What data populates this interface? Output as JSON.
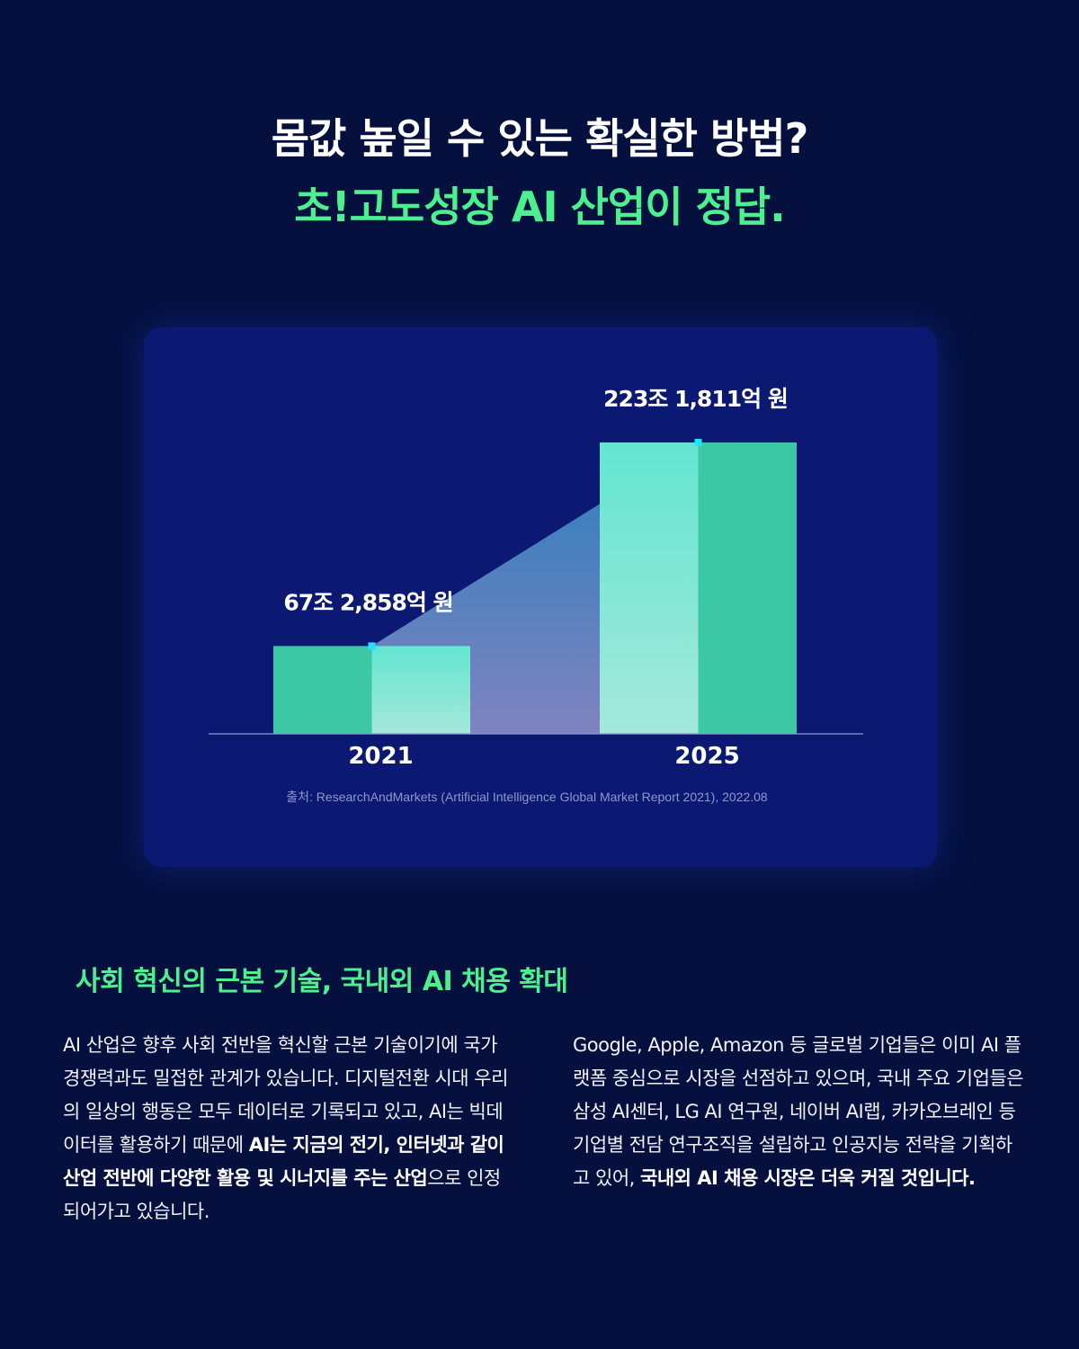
{
  "headline": {
    "line1": "몸값 높일 수 있는 확실한 방법?",
    "line2": "초!고도성장 AI 산업이 정답."
  },
  "chart_data": {
    "type": "bar",
    "categories": [
      "2021",
      "2025"
    ],
    "values": [
      67.2858,
      223.1811
    ],
    "value_labels": [
      "67조 2,858억 원",
      "223조 1,811억 원"
    ],
    "ylabel": "",
    "xlabel": "",
    "grid": false,
    "source": "출처: ResearchAndMarkets (Artificial Intelligence Global Market Report 2021), 2022.08",
    "colors": {
      "bar_dark": "#3cc7a5",
      "bar_light_top": "#62e6d0",
      "bar_light_bottom": "#a4e8da",
      "trend_fill_top": "#2f8ac4",
      "trend_fill_bottom": "#8c8fc8",
      "marker": "#22e3ff"
    }
  },
  "section": {
    "heading": "사회 혁신의 근본 기술, 국내외 AI 채용 확대",
    "left_paragraph": [
      {
        "text": "AI 산업은 향후 사회 전반을 혁신할 근본 기술이기에 국가 경쟁력과도 밀접한 관계가 있습니다. 디지털전환 시대 우리의 일상의 행동은 모두 데이터로 기록되고 있고, AI는 빅데이터를 활용하기 때문에 ",
        "bold": false
      },
      {
        "text": "AI는 지금의 전기, 인터넷과 같이 산업 전반에 다양한 활용 및 시너지를 주는 산업",
        "bold": true
      },
      {
        "text": "으로 인정되어가고 있습니다.",
        "bold": false
      }
    ],
    "right_paragraph": [
      {
        "text": "Google, Apple, Amazon 등 글로벌 기업들은 이미 AI 플랫폼 중심으로 시장을 선점하고 있으며, 국내 주요 기업들은 삼성 AI센터, LG AI 연구원, 네이버 AI랩, 카카오브레인 등 기업별 전담 연구조직을 설립하고 인공지능 전략을 기획하고 있어, ",
        "bold": false
      },
      {
        "text": "국내외 AI 채용 시장은 더욱 커질 것입니다.",
        "bold": true
      }
    ]
  }
}
